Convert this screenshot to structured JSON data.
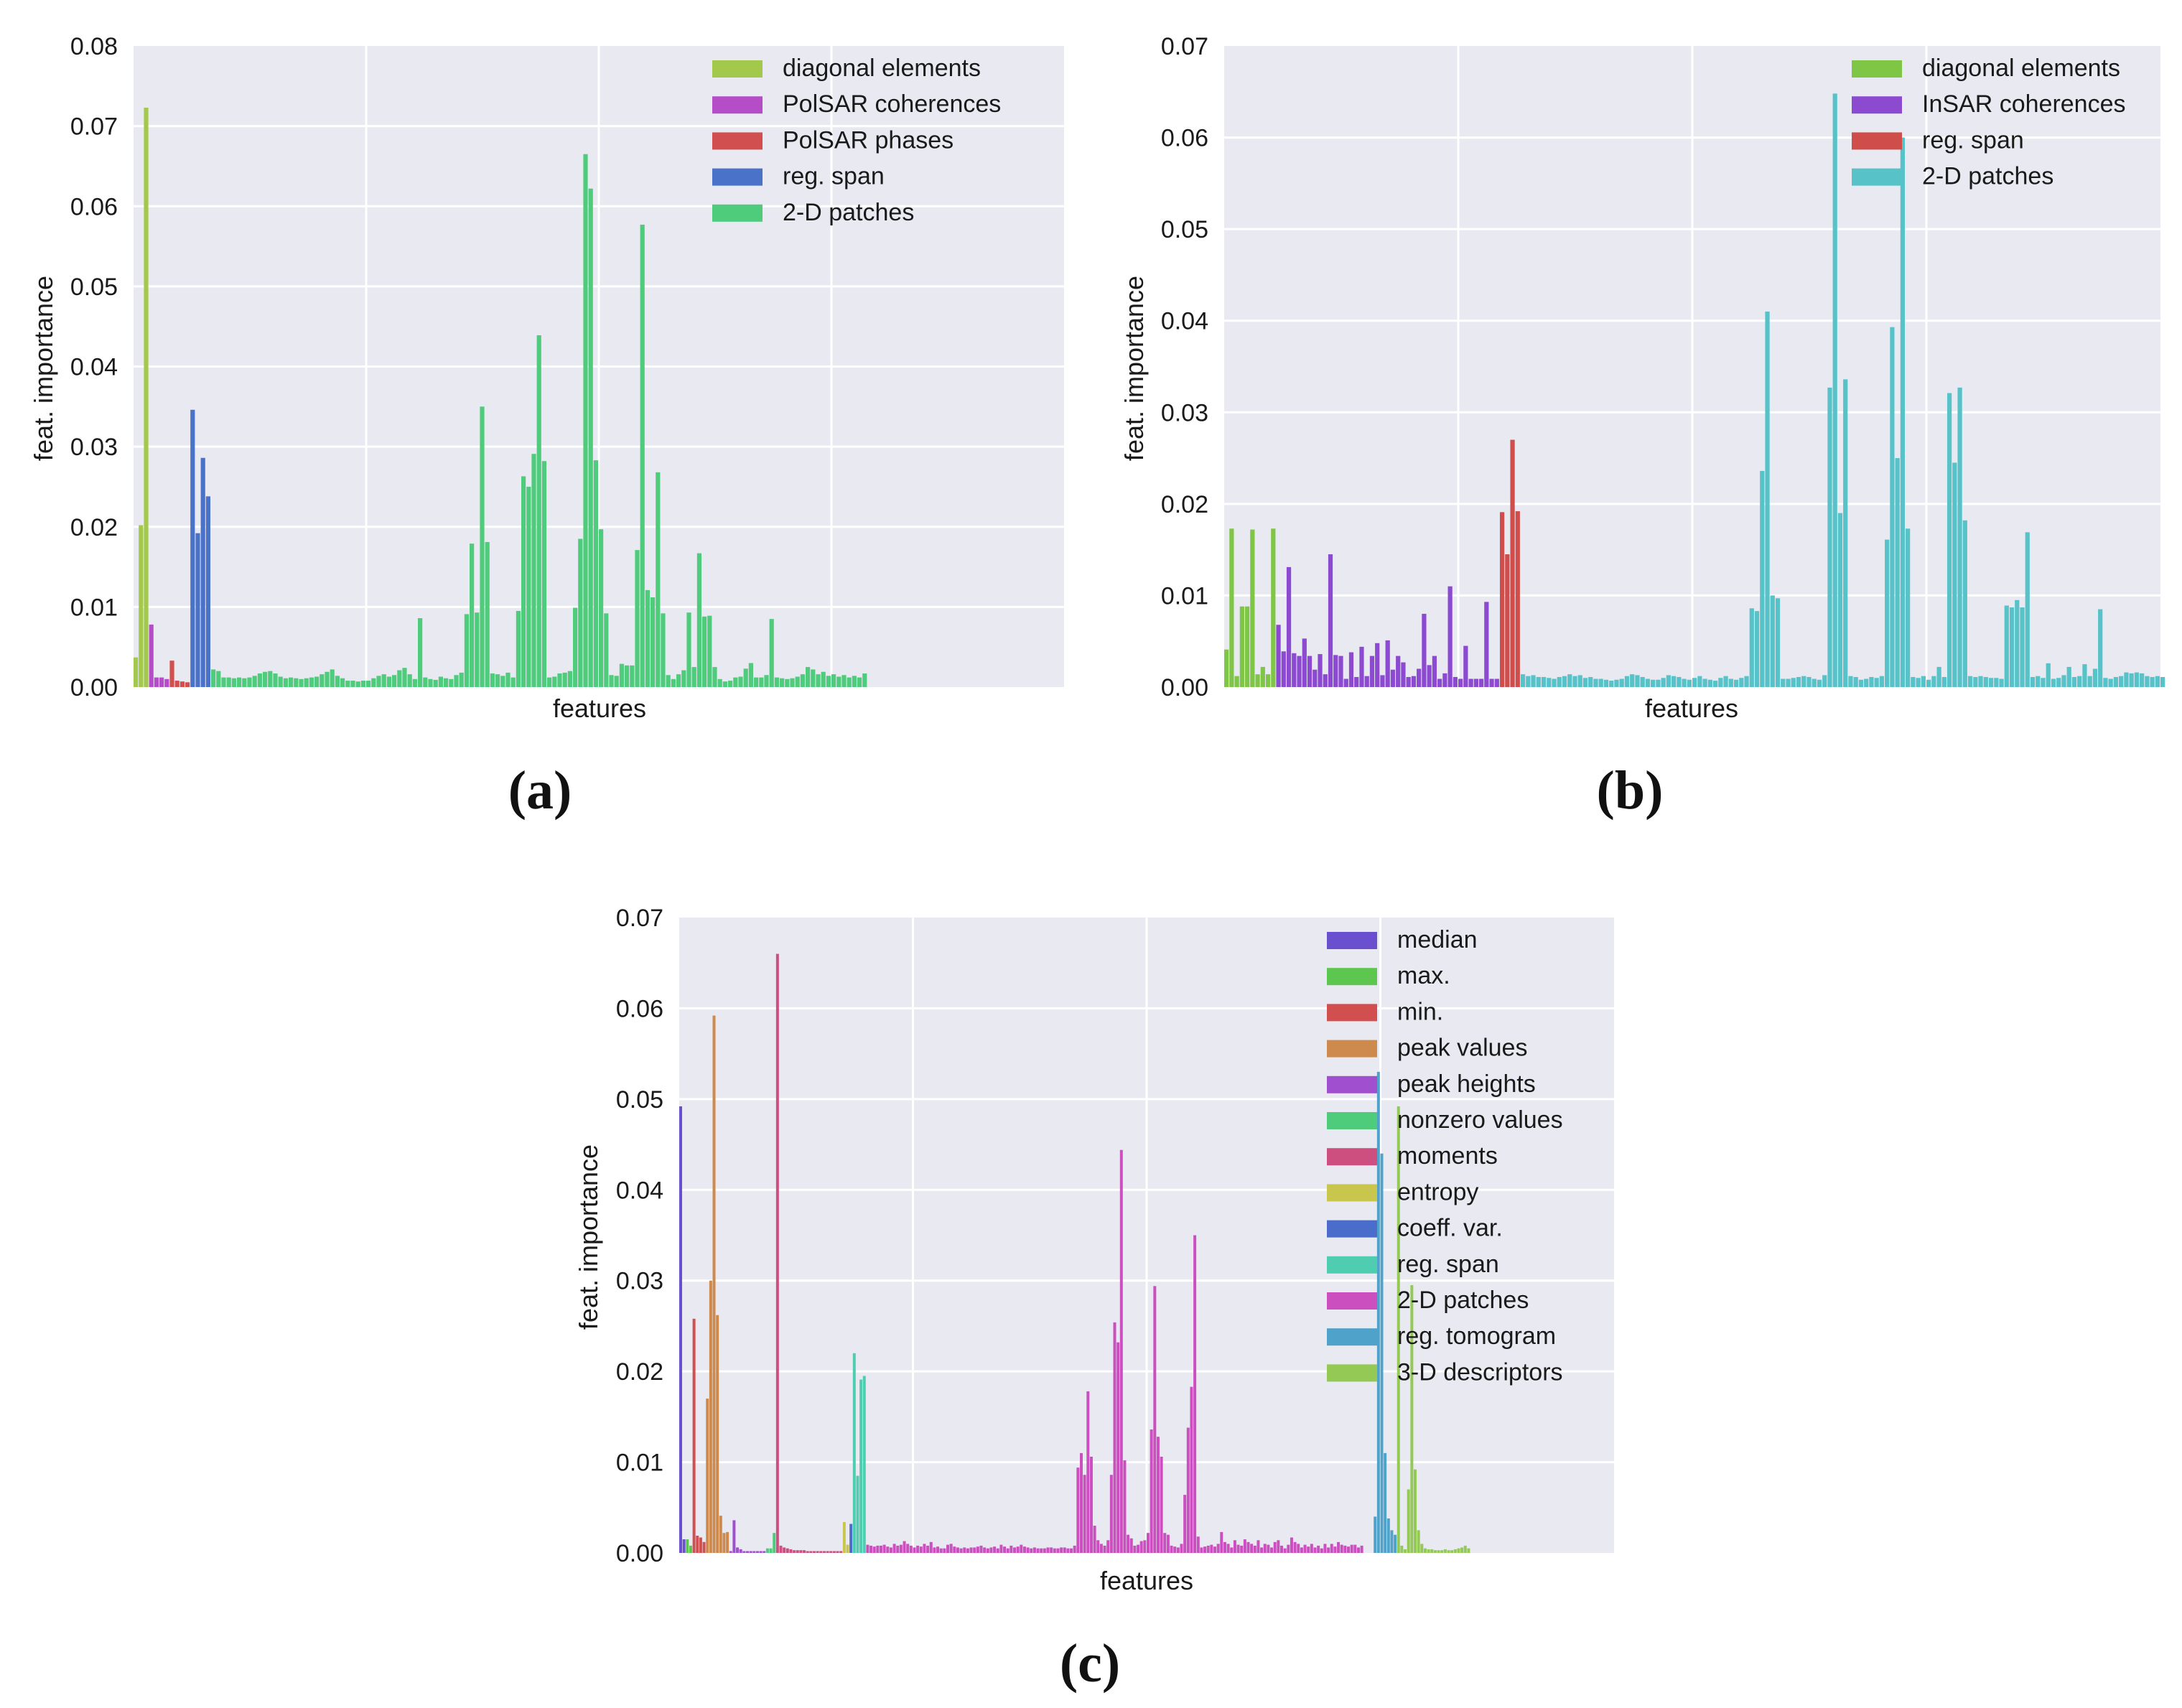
{
  "figure": {
    "panel_labels": [
      "(a)",
      "(b)",
      "(c)"
    ]
  },
  "colors": {
    "plot_background": "#e9e9f1",
    "grid": "#ffffff",
    "text": "#1a1a1a"
  },
  "chart_data": [
    {
      "id": "a",
      "type": "bar",
      "title": "",
      "xlabel": "features",
      "ylabel": "feat. importance",
      "ylim": [
        0,
        0.08
      ],
      "yticks": [
        "0.00",
        "0.01",
        "0.02",
        "0.03",
        "0.04",
        "0.05",
        "0.06",
        "0.07",
        "0.08"
      ],
      "xticks": [],
      "grid": true,
      "legend_position": "top-right",
      "n_features": 180,
      "series": [
        {
          "name": "diagonal elements",
          "color": "#a3c94c",
          "start": 0,
          "values": [
            0.0037,
            0.0202,
            0.0723
          ]
        },
        {
          "name": "PolSAR coherences",
          "color": "#b54dc9",
          "start": 3,
          "values": [
            0.0078,
            0.0012,
            0.0012,
            0.001
          ]
        },
        {
          "name": "PolSAR phases",
          "color": "#d1504f",
          "start": 7,
          "values": [
            0.0033,
            0.0008,
            0.0007,
            0.0006
          ]
        },
        {
          "name": "reg. span",
          "color": "#4a72c9",
          "start": 11,
          "values": [
            0.0346,
            0.0192,
            0.0286,
            0.0238
          ]
        },
        {
          "name": "2-D patches",
          "color": "#4fcb7c",
          "start": 15,
          "values": [
            0.0022,
            0.002,
            0.0012,
            0.0012,
            0.0011,
            0.0012,
            0.0011,
            0.0012,
            0.0014,
            0.0017,
            0.0019,
            0.002,
            0.0017,
            0.0013,
            0.0011,
            0.0012,
            0.0011,
            0.001,
            0.0011,
            0.0012,
            0.0013,
            0.0016,
            0.0019,
            0.0022,
            0.0014,
            0.0011,
            0.0008,
            0.0008,
            0.0007,
            0.0008,
            0.0008,
            0.0011,
            0.0014,
            0.0016,
            0.0013,
            0.0015,
            0.0021,
            0.0024,
            0.0016,
            0.001,
            0.0086,
            0.0012,
            0.001,
            0.0009,
            0.0013,
            0.0011,
            0.001,
            0.0015,
            0.0018,
            0.0091,
            0.0179,
            0.0093,
            0.035,
            0.0181,
            0.0017,
            0.0016,
            0.0014,
            0.0018,
            0.0012,
            0.0095,
            0.0263,
            0.025,
            0.0291,
            0.0439,
            0.0282,
            0.0012,
            0.0013,
            0.0017,
            0.0018,
            0.002,
            0.0099,
            0.0185,
            0.0665,
            0.0622,
            0.0283,
            0.0197,
            0.0092,
            0.0015,
            0.0014,
            0.0029,
            0.0027,
            0.0027,
            0.0171,
            0.0577,
            0.0121,
            0.0112,
            0.0268,
            0.0092,
            0.0015,
            0.001,
            0.0016,
            0.0021,
            0.0093,
            0.0025,
            0.0167,
            0.0088,
            0.0089,
            0.0025,
            0.001,
            0.0007,
            0.0008,
            0.0012,
            0.0013,
            0.0023,
            0.003,
            0.0012,
            0.0012,
            0.0015,
            0.0085,
            0.0012,
            0.0011,
            0.001,
            0.0011,
            0.0013,
            0.0016,
            0.0025,
            0.0022,
            0.0016,
            0.0019,
            0.0014,
            0.0016,
            0.0013,
            0.0015,
            0.0012,
            0.0014,
            0.0012,
            0.0017
          ]
        }
      ]
    },
    {
      "id": "b",
      "type": "bar",
      "title": "",
      "xlabel": "features",
      "ylabel": "feat. importance",
      "ylim": [
        0,
        0.07
      ],
      "yticks": [
        "0.00",
        "0.01",
        "0.02",
        "0.03",
        "0.04",
        "0.05",
        "0.06",
        "0.07"
      ],
      "xticks": [],
      "grid": true,
      "legend_position": "top-right",
      "n_features": 180,
      "series": [
        {
          "name": "diagonal elements",
          "color": "#7fc646",
          "start": 0,
          "values": [
            0.0041,
            0.0173,
            0.0012,
            0.0088,
            0.0088,
            0.0172,
            0.0014,
            0.0022,
            0.0014,
            0.0173
          ]
        },
        {
          "name": "InSAR coherences",
          "color": "#8c4ad1",
          "start": 10,
          "values": [
            0.0068,
            0.0039,
            0.0131,
            0.0037,
            0.0034,
            0.0053,
            0.0034,
            0.0019,
            0.0036,
            0.0014,
            0.0145,
            0.0035,
            0.0034,
            0.0009,
            0.0038,
            0.0011,
            0.0044,
            0.0012,
            0.0034,
            0.0048,
            0.0013,
            0.0051,
            0.0019,
            0.0034,
            0.0027,
            0.0011,
            0.0012,
            0.002,
            0.008,
            0.0024,
            0.0034,
            0.0009,
            0.0015,
            0.011,
            0.0011,
            0.0009,
            0.0045,
            0.0009,
            0.0009,
            0.0009,
            0.0093,
            0.0009,
            0.0009
          ]
        },
        {
          "name": "reg. span",
          "color": "#cf4e4b",
          "start": 53,
          "values": [
            0.0191,
            0.0145,
            0.027,
            0.0192
          ]
        },
        {
          "name": "2-D patches",
          "color": "#57c3c9",
          "start": 57,
          "values": [
            0.0014,
            0.0012,
            0.0013,
            0.0011,
            0.0011,
            0.001,
            0.0009,
            0.0011,
            0.0012,
            0.0014,
            0.0012,
            0.0013,
            0.001,
            0.0011,
            0.0009,
            0.0009,
            0.0008,
            0.0007,
            0.0008,
            0.0009,
            0.0012,
            0.0014,
            0.0013,
            0.0011,
            0.0009,
            0.0008,
            0.0008,
            0.001,
            0.0013,
            0.0012,
            0.0011,
            0.0009,
            0.0008,
            0.001,
            0.0012,
            0.0009,
            0.0008,
            0.0007,
            0.001,
            0.0012,
            0.0009,
            0.0008,
            0.001,
            0.0012,
            0.0086,
            0.0083,
            0.0236,
            0.041,
            0.01,
            0.0097,
            0.0009,
            0.0009,
            0.001,
            0.0011,
            0.0012,
            0.0011,
            0.0009,
            0.0008,
            0.0013,
            0.0327,
            0.0648,
            0.019,
            0.0336,
            0.0012,
            0.0011,
            0.0008,
            0.0009,
            0.0011,
            0.001,
            0.0012,
            0.0161,
            0.0393,
            0.025,
            0.06,
            0.0173,
            0.0011,
            0.001,
            0.0012,
            0.0008,
            0.0012,
            0.0022,
            0.0011,
            0.0321,
            0.0245,
            0.0327,
            0.0182,
            0.0012,
            0.0011,
            0.0012,
            0.0011,
            0.001,
            0.001,
            0.0009,
            0.0089,
            0.0087,
            0.0095,
            0.0087,
            0.0169,
            0.0011,
            0.0012,
            0.001,
            0.0026,
            0.0009,
            0.001,
            0.0013,
            0.0022,
            0.0011,
            0.0012,
            0.0025,
            0.0012,
            0.002,
            0.0085,
            0.001,
            0.0009,
            0.0011,
            0.0012,
            0.0016,
            0.0015,
            0.0016,
            0.0015,
            0.0012,
            0.0011,
            0.0012,
            0.0011
          ]
        }
      ]
    },
    {
      "id": "c",
      "type": "bar",
      "title": "",
      "xlabel": "features",
      "ylabel": "feat. importance",
      "ylim": [
        0,
        0.07
      ],
      "yticks": [
        "0.00",
        "0.01",
        "0.02",
        "0.03",
        "0.04",
        "0.05",
        "0.06",
        "0.07"
      ],
      "xticks": [],
      "grid": true,
      "legend_position": "top-right",
      "n_features": 280,
      "series": [
        {
          "name": "median",
          "color": "#6a4fcf",
          "start": 0,
          "values": [
            0.0492,
            0.0015
          ]
        },
        {
          "name": "max.",
          "color": "#5cc64e",
          "start": 2,
          "values": [
            0.0015,
            0.0008
          ]
        },
        {
          "name": "min.",
          "color": "#d1504f",
          "start": 4,
          "values": [
            0.0258,
            0.0019,
            0.0017,
            0.0012
          ]
        },
        {
          "name": "peak values",
          "color": "#cd8a4c",
          "start": 8,
          "values": [
            0.017,
            0.03,
            0.0592,
            0.0262,
            0.0041,
            0.0022,
            0.0023
          ]
        },
        {
          "name": "peak heights",
          "color": "#a04fce",
          "start": 15,
          "values": [
            0.0002,
            0.0036,
            0.0006,
            0.0004,
            0.0002,
            0.0002,
            0.0002,
            0.0002,
            0.0002,
            0.0002,
            0.0002
          ]
        },
        {
          "name": "nonzero values",
          "color": "#4fcb7c",
          "start": 26,
          "values": [
            0.0005,
            0.0005,
            0.0022
          ]
        },
        {
          "name": "moments",
          "color": "#cc4f80",
          "start": 29,
          "values": [
            0.066,
            0.0008,
            0.0006,
            0.0005,
            0.0004,
            0.0003,
            0.0003,
            0.0003,
            0.0003,
            0.0002,
            0.0002,
            0.0002,
            0.0002,
            0.0002,
            0.0002,
            0.0002,
            0.0002,
            0.0002,
            0.0002,
            0.0002
          ]
        },
        {
          "name": "entropy",
          "color": "#c8c64d",
          "start": 49,
          "values": [
            0.0034,
            0.0009
          ]
        },
        {
          "name": "coeff. var.",
          "color": "#4a6dcb",
          "start": 51,
          "values": [
            0.0032
          ]
        },
        {
          "name": "reg. span",
          "color": "#4fcdb1",
          "start": 52,
          "values": [
            0.022,
            0.0085,
            0.0191,
            0.0195
          ]
        },
        {
          "name": "2-D patches",
          "color": "#cc4fc0",
          "start": 56,
          "values": [
            0.0009,
            0.0008,
            0.0007,
            0.0008,
            0.0008,
            0.0009,
            0.0007,
            0.0006,
            0.001,
            0.0008,
            0.0009,
            0.0013,
            0.001,
            0.0008,
            0.0006,
            0.0008,
            0.0007,
            0.001,
            0.0008,
            0.0012,
            0.0006,
            0.0007,
            0.0005,
            0.0005,
            0.0009,
            0.001,
            0.0007,
            0.0006,
            0.0005,
            0.0006,
            0.0005,
            0.0006,
            0.0006,
            0.0007,
            0.0008,
            0.0006,
            0.0005,
            0.0006,
            0.0007,
            0.0005,
            0.0009,
            0.0007,
            0.0005,
            0.0008,
            0.0006,
            0.0007,
            0.0009,
            0.0007,
            0.0006,
            0.0005,
            0.0006,
            0.0005,
            0.0005,
            0.0005,
            0.0006,
            0.0006,
            0.0005,
            0.0005,
            0.0006,
            0.0006,
            0.0005,
            0.0005,
            0.0008,
            0.0094,
            0.011,
            0.0086,
            0.0178,
            0.0106,
            0.003,
            0.0014,
            0.001,
            0.0008,
            0.0014,
            0.0086,
            0.0254,
            0.0232,
            0.0444,
            0.0102,
            0.002,
            0.0016,
            0.0008,
            0.0009,
            0.0013,
            0.0014,
            0.0022,
            0.0136,
            0.0294,
            0.0128,
            0.0106,
            0.0022,
            0.002,
            0.0008,
            0.0007,
            0.0006,
            0.001,
            0.0064,
            0.0138,
            0.0183,
            0.035,
            0.0018,
            0.0006,
            0.0007,
            0.0008,
            0.0009,
            0.0007,
            0.001,
            0.0023,
            0.0012,
            0.001,
            0.0006,
            0.0014,
            0.0009,
            0.0008,
            0.0015,
            0.0012,
            0.001,
            0.0008,
            0.0014,
            0.0006,
            0.001,
            0.0009,
            0.0006,
            0.0012,
            0.0014,
            0.0008,
            0.0005,
            0.0009,
            0.0017,
            0.0012,
            0.001,
            0.0006,
            0.0009,
            0.0007,
            0.001,
            0.0006,
            0.0008,
            0.0005,
            0.001,
            0.0006,
            0.001,
            0.0007,
            0.0012,
            0.0009,
            0.0008,
            0.0007,
            0.0009,
            0.0009,
            0.0006,
            0.0008
          ]
        },
        {
          "name": "reg. tomogram",
          "color": "#4fa3cb",
          "start": 208,
          "values": [
            0.004,
            0.053,
            0.044,
            0.011,
            0.0038,
            0.0025,
            0.002
          ]
        },
        {
          "name": "3-D descriptors",
          "color": "#93c954",
          "start": 215,
          "values": [
            0.0492,
            0.0008,
            0.0004,
            0.007,
            0.0295,
            0.0092,
            0.0025,
            0.001,
            0.0005,
            0.0004,
            0.0004,
            0.0003,
            0.0003,
            0.0003,
            0.0004,
            0.0003,
            0.0003,
            0.0004,
            0.0005,
            0.0006,
            0.0008,
            0.0005
          ]
        }
      ]
    }
  ]
}
